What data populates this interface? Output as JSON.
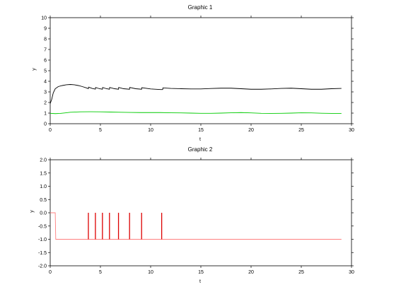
{
  "chart_data": [
    {
      "type": "line",
      "title": "Graphic 1",
      "xlabel": "t",
      "ylabel": "y",
      "xlim": [
        0,
        30
      ],
      "ylim": [
        0,
        10
      ],
      "xticks": [
        "0",
        "5",
        "10",
        "15",
        "20",
        "25",
        "30"
      ],
      "yticks": [
        "0",
        "1",
        "2",
        "3",
        "4",
        "5",
        "6",
        "7",
        "8",
        "9",
        "10"
      ],
      "grid": false,
      "series": [
        {
          "color": "#000000",
          "x": [
            0,
            0.15,
            0.3,
            0.5,
            0.8,
            1.2,
            1.6,
            2.0,
            2.4,
            2.8,
            3.2,
            3.6,
            3.8,
            3.82,
            4.2,
            4.5,
            4.52,
            4.9,
            5.2,
            5.22,
            5.6,
            5.9,
            5.92,
            6.4,
            6.8,
            6.82,
            7.3,
            7.9,
            7.92,
            8.5,
            9.1,
            9.12,
            10.0,
            11.0,
            11.2,
            11.22,
            12,
            13,
            14,
            15,
            16,
            17,
            18,
            19,
            20,
            21,
            22,
            23,
            24,
            25,
            26,
            27,
            28,
            29
          ],
          "y": [
            1.9,
            2.3,
            2.9,
            3.3,
            3.5,
            3.6,
            3.67,
            3.7,
            3.67,
            3.6,
            3.5,
            3.38,
            3.3,
            3.45,
            3.32,
            3.26,
            3.42,
            3.3,
            3.25,
            3.42,
            3.3,
            3.25,
            3.42,
            3.3,
            3.25,
            3.42,
            3.3,
            3.25,
            3.42,
            3.3,
            3.25,
            3.4,
            3.28,
            3.22,
            3.22,
            3.38,
            3.33,
            3.3,
            3.28,
            3.28,
            3.32,
            3.35,
            3.35,
            3.3,
            3.25,
            3.25,
            3.28,
            3.33,
            3.35,
            3.3,
            3.25,
            3.25,
            3.3,
            3.33
          ]
        },
        {
          "color": "#00cc00",
          "x": [
            0,
            0.5,
            1,
            1.5,
            2,
            3,
            4,
            5,
            6,
            7,
            8,
            9,
            10,
            11,
            12,
            13,
            14,
            15,
            16,
            17,
            18,
            19,
            20,
            21,
            22,
            23,
            24,
            25,
            26,
            27,
            28,
            29
          ],
          "y": [
            0.98,
            0.95,
            0.97,
            1.02,
            1.08,
            1.12,
            1.13,
            1.12,
            1.1,
            1.08,
            1.06,
            1.05,
            1.05,
            1.05,
            1.03,
            1.02,
            1.0,
            0.98,
            0.98,
            1.0,
            1.03,
            1.05,
            1.02,
            0.98,
            0.97,
            0.98,
            1.0,
            1.03,
            1.02,
            0.99,
            0.97,
            0.97
          ]
        }
      ]
    },
    {
      "type": "line",
      "title": "Graphic 2",
      "xlabel": "t",
      "ylabel": "y",
      "xlim": [
        0,
        30
      ],
      "ylim": [
        -2.0,
        2.0
      ],
      "xticks": [
        "0",
        "5",
        "10",
        "15",
        "20",
        "25",
        "30"
      ],
      "yticks": [
        "-2.0",
        "-1.5",
        "-1.0",
        "-0.5",
        "0.0",
        "0.5",
        "1.0",
        "1.5",
        "2.0"
      ],
      "grid": false,
      "series": [
        {
          "color": "#ff8080",
          "x": [
            0,
            0.5,
            0.55,
            29
          ],
          "y": [
            0,
            0,
            -1,
            -1
          ]
        },
        {
          "color": "#dd0000",
          "spikes_x": [
            3.8,
            4.5,
            5.2,
            5.9,
            6.8,
            7.9,
            9.1,
            11.1
          ],
          "spike_base": -1,
          "spike_top": 0
        }
      ]
    }
  ]
}
